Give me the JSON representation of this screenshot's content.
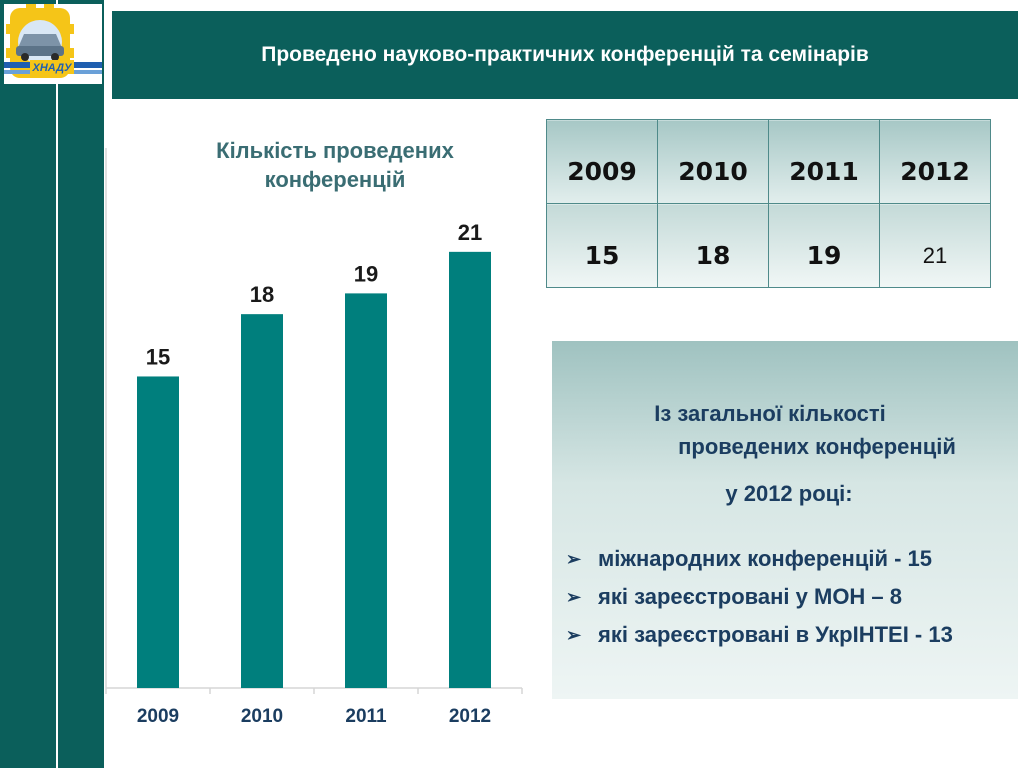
{
  "header": {
    "title": "Проведено науково-практичних конференцій та семінарів"
  },
  "logo": {
    "text": "ХНАДУ",
    "accent": "#f5c518",
    "blue": "#1f5fb0"
  },
  "chart_data": {
    "type": "bar",
    "title": "Кількість проведених конференцій",
    "title_lines": [
      "Кількість проведених",
      "конференцій"
    ],
    "categories": [
      "2009",
      "2010",
      "2011",
      "2012"
    ],
    "values": [
      15,
      18,
      19,
      21
    ],
    "data_labels": [
      "15",
      "18",
      "19",
      "21"
    ],
    "ylim": [
      0,
      26
    ],
    "bar_color": "#007f7d",
    "grid": false,
    "legend": "none"
  },
  "table": {
    "years": [
      "2009",
      "2010",
      "2011",
      "2012"
    ],
    "counts": [
      "15",
      "18",
      "19",
      "21"
    ]
  },
  "info": {
    "heading_lines": [
      "Із загальної кількості",
      "проведених конференцій",
      "у 2012 році:"
    ],
    "items": [
      "міжнародних конференцій - 15",
      "які зареєстровані у МОН – 8",
      "які зареєстровані  в  УкрІНТЕІ - 13"
    ]
  }
}
